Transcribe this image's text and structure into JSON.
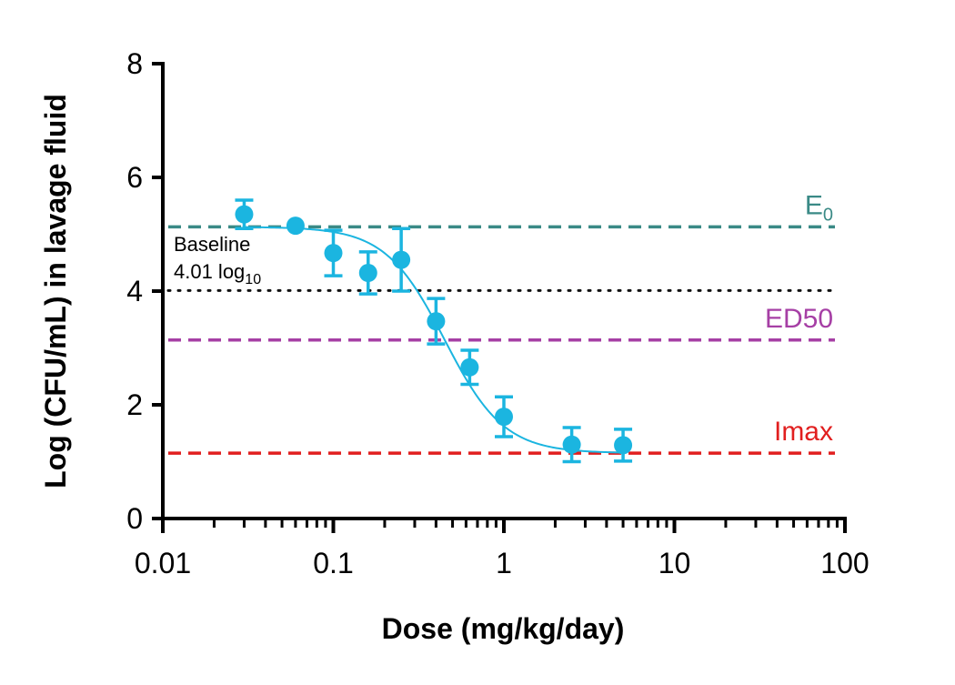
{
  "chart_data": {
    "type": "scatter",
    "xlabel": "Dose (mg/kg/day)",
    "ylabel": "Log (CFU/mL) in lavage fluid",
    "x_scale": "log",
    "xlim": [
      0.01,
      100
    ],
    "ylim": [
      0,
      8
    ],
    "x_ticks": [
      "0.01",
      "0.1",
      "1",
      "10",
      "100"
    ],
    "y_ticks": [
      "0",
      "2",
      "4",
      "6",
      "8"
    ],
    "grid": false,
    "series": [
      {
        "points": [
          {
            "x": 0.03,
            "y": 5.35,
            "err": 0.25
          },
          {
            "x": 0.06,
            "y": 5.15,
            "err": 0.0
          },
          {
            "x": 0.1,
            "y": 4.67,
            "err": 0.4
          },
          {
            "x": 0.16,
            "y": 4.32,
            "err": 0.37
          },
          {
            "x": 0.25,
            "y": 4.55,
            "err": 0.55
          },
          {
            "x": 0.4,
            "y": 3.47,
            "err": 0.4
          },
          {
            "x": 0.63,
            "y": 2.66,
            "err": 0.3
          },
          {
            "x": 1.0,
            "y": 1.79,
            "err": 0.35
          },
          {
            "x": 2.5,
            "y": 1.3,
            "err": 0.3
          },
          {
            "x": 5.0,
            "y": 1.29,
            "err": 0.28
          }
        ],
        "color": "#1bb5e0"
      }
    ],
    "fit_curve": {
      "model": "sigmoid Emax",
      "E0": 5.13,
      "Imax_level": 1.15,
      "ED50_dose": 0.45,
      "hill": 2.5,
      "x_range": [
        0.03,
        5.0
      ],
      "color": "#1bb5e0"
    },
    "reference_lines": [
      {
        "label_main": "E",
        "label_sub": "0",
        "y": 5.13,
        "style": "dashed",
        "color": "#3a8a86"
      },
      {
        "label_main": "ED50",
        "label_sub": "",
        "y": 3.14,
        "style": "dashed",
        "color": "#a63fa5"
      },
      {
        "label_main": "Imax",
        "label_sub": "",
        "y": 1.15,
        "style": "dashed",
        "color": "#e11f1f"
      },
      {
        "label_main": "",
        "label_sub": "",
        "y": 4.01,
        "style": "dotted",
        "color": "#111111"
      }
    ],
    "annotations": {
      "baseline_line1": "Baseline",
      "baseline_line2_main": "4.01 log",
      "baseline_line2_sub": "10"
    }
  }
}
